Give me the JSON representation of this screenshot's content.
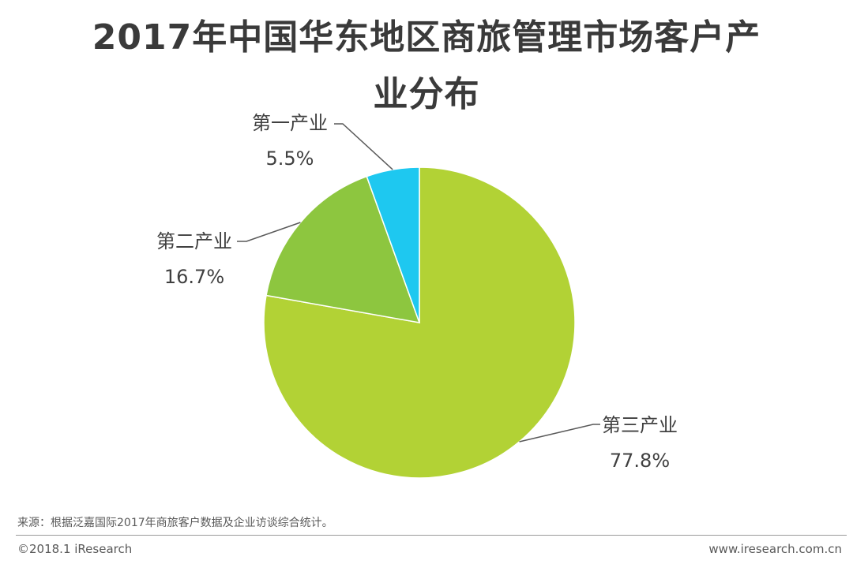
{
  "chart_data": {
    "type": "pie",
    "title": "2017年中国华东地区商旅管理市场客户产业分布",
    "slices": [
      {
        "name": "第三产业",
        "value": 77.8,
        "label": "77.8%",
        "color": "#b2d235"
      },
      {
        "name": "第二产业",
        "value": 16.7,
        "label": "16.7%",
        "color": "#8dc63f"
      },
      {
        "name": "第一产业",
        "value": 5.5,
        "label": "5.5%",
        "color": "#1ec8f0"
      }
    ],
    "start": "12 o'clock",
    "direction": "clockwise",
    "labels": "outside with leader lines"
  },
  "footer": {
    "source": "来源：根据泛嘉国际2017年商旅客户数据及企业访谈综合统计。",
    "copyright": "©2018.1 iResearch",
    "website": "www.iresearch.com.cn"
  }
}
